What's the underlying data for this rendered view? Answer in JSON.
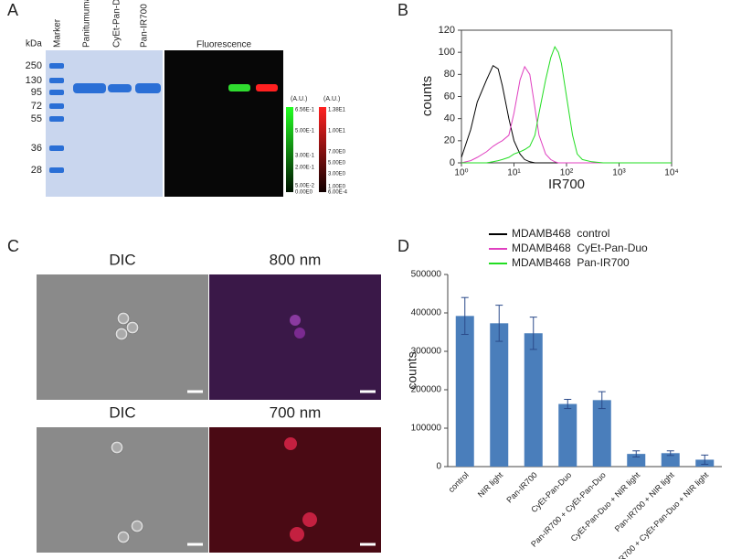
{
  "figure": {
    "labels": [
      "A",
      "B",
      "C",
      "D"
    ],
    "gel": {
      "kda": "kDa",
      "lanes": [
        "Marker",
        "Panitumumab",
        "CyEt-Pan-Duo",
        "Pan-IR700"
      ],
      "markers": [
        250,
        130,
        95,
        72,
        55,
        36,
        28
      ],
      "fluorescence": "Fluorescence",
      "green_scale": {
        "unit": "(A.U.)",
        "ticks": [
          "6.56E-1",
          "5.00E-1",
          "3.00E-1",
          "2.00E-1",
          "5.00E-2",
          "0.00E0"
        ]
      },
      "red_scale": {
        "unit": "(A.U.)",
        "ticks": [
          "1.38E1",
          "1.00E1",
          "7.00E0",
          "5.00E0",
          "3.00E0",
          "1.00E0",
          "6.00E-4"
        ]
      }
    },
    "micro": {
      "titles": [
        "DIC",
        "800 nm",
        "DIC",
        "700 nm"
      ]
    }
  },
  "chart_data": [
    {
      "type": "line",
      "ylabel": "counts",
      "xlabel": "IR700",
      "xlog": true,
      "x": [
        1,
        1.5,
        2,
        3,
        4,
        5,
        6,
        8,
        10,
        13,
        16,
        20,
        25,
        30,
        40,
        50,
        60,
        70,
        80,
        100,
        130,
        160,
        200,
        300,
        500,
        1000,
        10000
      ],
      "xlim": [
        1,
        10000
      ],
      "xticks": [
        {
          "value": 1,
          "label": "10⁰"
        },
        {
          "value": 10,
          "label": "10¹"
        },
        {
          "value": 100,
          "label": "10²"
        },
        {
          "value": 1000,
          "label": "10³"
        },
        {
          "value": 10000,
          "label": "10⁴"
        }
      ],
      "ylim": [
        0,
        120
      ],
      "yticks": [
        0,
        20,
        40,
        60,
        80,
        100,
        120
      ],
      "series": [
        {
          "name": "MDAMB468  control",
          "color": "#000000",
          "values": [
            5,
            30,
            55,
            75,
            88,
            85,
            70,
            40,
            20,
            8,
            3,
            1,
            0,
            0,
            0,
            0,
            0,
            0,
            0,
            0,
            0,
            0,
            0,
            0,
            0,
            0,
            0
          ]
        },
        {
          "name": "MDAMB468  CyEt-Pan-Duo",
          "color": "#e040c0",
          "values": [
            0,
            2,
            5,
            10,
            15,
            18,
            20,
            25,
            45,
            75,
            87,
            80,
            50,
            25,
            8,
            3,
            1,
            0,
            0,
            0,
            0,
            0,
            0,
            0,
            0,
            0,
            0
          ]
        },
        {
          "name": "MDAMB468  Pan-IR700",
          "color": "#22dd22",
          "values": [
            0,
            0,
            0,
            0,
            1,
            2,
            3,
            5,
            8,
            10,
            12,
            15,
            25,
            45,
            75,
            95,
            105,
            100,
            90,
            60,
            25,
            8,
            3,
            1,
            0,
            0,
            0
          ]
        }
      ]
    },
    {
      "type": "bar",
      "ylabel": "counts",
      "color": "#4a7ebb",
      "categories": [
        "control",
        "NIR light",
        "Pan-IR700",
        "CyEt-Pan-Duo",
        "Pan-IR700 + CyEt-Pan-Duo",
        "CyEt-Pan-Duo + NIR light",
        "Pan-IR700 + NIR light",
        "Pan-IR700 + CyEt-Pan-Duo + NIR light"
      ],
      "values": [
        392000,
        373000,
        347000,
        163000,
        173000,
        33000,
        35000,
        18000
      ],
      "errors": [
        48000,
        47000,
        42000,
        12000,
        22000,
        8000,
        6000,
        12000
      ],
      "ylim": [
        0,
        500000
      ],
      "yticks": [
        0,
        100000,
        200000,
        300000,
        400000,
        500000
      ]
    }
  ]
}
